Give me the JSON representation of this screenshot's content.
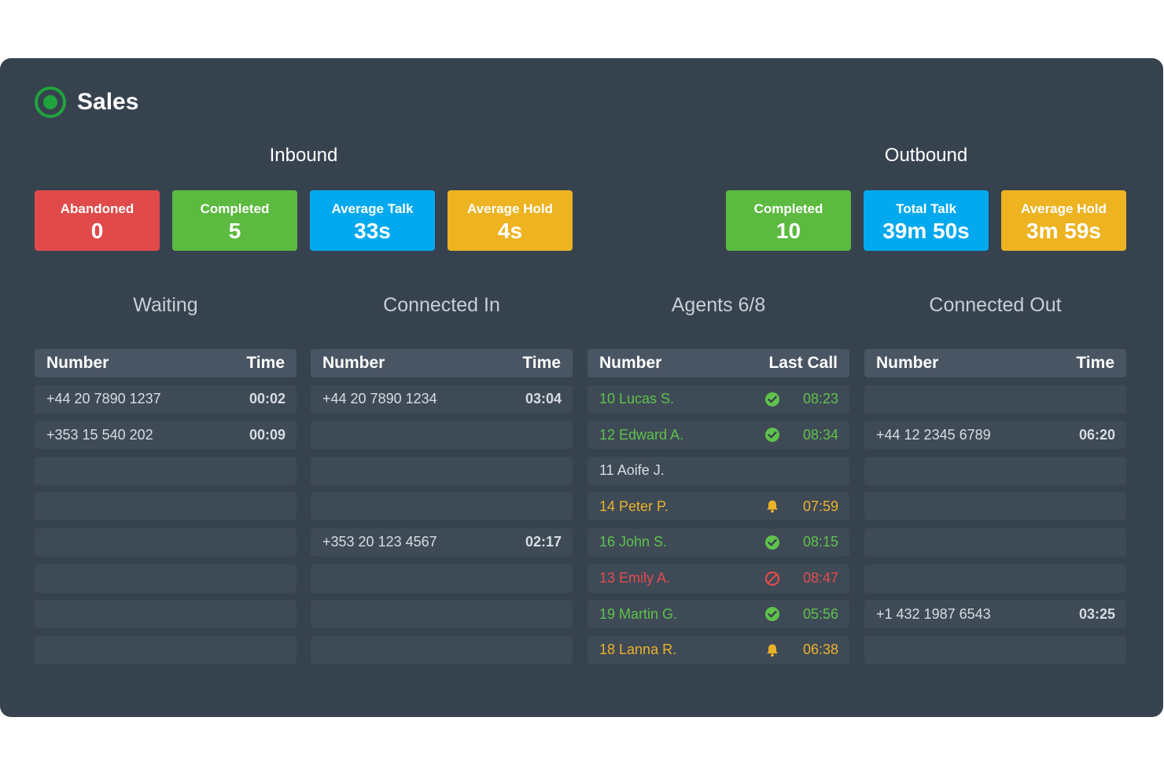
{
  "title": "Sales",
  "colors": {
    "abandoned": "#e04a4a",
    "completed": "#5bba3f",
    "talk": "#03a9ee",
    "hold": "#edb321",
    "panel": "#37424f",
    "ok": "#5fc24a",
    "warn": "#eab229",
    "bad": "#e24c4c"
  },
  "inbound": {
    "title": "Inbound",
    "stats": [
      {
        "label": "Abandoned",
        "value": "0"
      },
      {
        "label": "Completed",
        "value": "5"
      },
      {
        "label": "Average Talk",
        "value": "33s"
      },
      {
        "label": "Average Hold",
        "value": "4s"
      }
    ]
  },
  "outbound": {
    "title": "Outbound",
    "stats": [
      {
        "label": "Completed",
        "value": "10"
      },
      {
        "label": "Total Talk",
        "value": "39m 50s"
      },
      {
        "label": "Average Hold",
        "value": "3m 59s"
      }
    ]
  },
  "waiting": {
    "title": "Waiting",
    "headers": [
      "Number",
      "Time"
    ],
    "rows": [
      {
        "number": "+44 20 7890 1237",
        "time": "00:02"
      },
      {
        "number": "+353 15 540 202",
        "time": "00:09"
      },
      {
        "number": "",
        "time": ""
      },
      {
        "number": "",
        "time": ""
      },
      {
        "number": "",
        "time": ""
      },
      {
        "number": "",
        "time": ""
      },
      {
        "number": "",
        "time": ""
      },
      {
        "number": "",
        "time": ""
      }
    ]
  },
  "connected_in": {
    "title": "Connected In",
    "headers": [
      "Number",
      "Time"
    ],
    "rows": [
      {
        "number": "+44 20 7890 1234",
        "time": "03:04"
      },
      {
        "number": "",
        "time": ""
      },
      {
        "number": "",
        "time": ""
      },
      {
        "number": "",
        "time": ""
      },
      {
        "number": "+353 20 123 4567",
        "time": "02:17"
      },
      {
        "number": "",
        "time": ""
      },
      {
        "number": "",
        "time": ""
      },
      {
        "number": "",
        "time": ""
      }
    ]
  },
  "agents": {
    "title": "Agents 6/8",
    "headers": [
      "Number",
      "Last Call"
    ],
    "rows": [
      {
        "name": "10 Lucas S.",
        "status": "green",
        "icon": "check-circle-icon",
        "time": "08:23"
      },
      {
        "name": "12 Edward A.",
        "status": "green",
        "icon": "check-circle-icon",
        "time": "08:34"
      },
      {
        "name": "11 Aoife J.",
        "status": "grey",
        "icon": "",
        "time": ""
      },
      {
        "name": "14 Peter P.",
        "status": "yellow",
        "icon": "bell-icon",
        "time": "07:59"
      },
      {
        "name": "16 John S.",
        "status": "green",
        "icon": "check-circle-icon",
        "time": "08:15"
      },
      {
        "name": "13 Emily A.",
        "status": "red",
        "icon": "blocked-icon",
        "time": "08:47"
      },
      {
        "name": "19 Martin G.",
        "status": "green",
        "icon": "check-circle-icon",
        "time": "05:56"
      },
      {
        "name": "18 Lanna R.",
        "status": "yellow",
        "icon": "bell-icon",
        "time": "06:38"
      }
    ]
  },
  "connected_out": {
    "title": "Connected Out",
    "headers": [
      "Number",
      "Time"
    ],
    "rows": [
      {
        "number": "",
        "time": ""
      },
      {
        "number": "+44 12 2345 6789",
        "time": "06:20"
      },
      {
        "number": "",
        "time": ""
      },
      {
        "number": "",
        "time": ""
      },
      {
        "number": "",
        "time": ""
      },
      {
        "number": "",
        "time": ""
      },
      {
        "number": "+1 432 1987 6543",
        "time": "03:25"
      },
      {
        "number": "",
        "time": ""
      }
    ]
  }
}
